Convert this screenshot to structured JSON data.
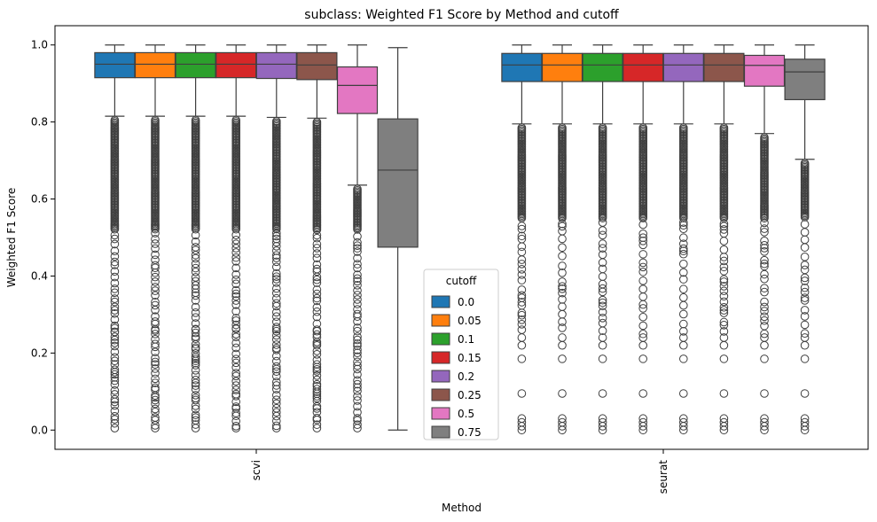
{
  "chart_data": {
    "type": "box",
    "title": "subclass: Weighted F1 Score by Method and cutoff",
    "xlabel": "Method",
    "ylabel": "Weighted F1 Score",
    "ylim": [
      -0.05,
      1.05
    ],
    "yticks": [
      "0.0",
      "0.2",
      "0.4",
      "0.6",
      "0.8",
      "1.0"
    ],
    "ytick_values": [
      0.0,
      0.2,
      0.4,
      0.6,
      0.8,
      1.0
    ],
    "grid": false,
    "categories": [
      "scvi",
      "seurat"
    ],
    "legend": {
      "title": "cutoff",
      "placement": "lower center",
      "entries": [
        "0.0",
        "0.05",
        "0.1",
        "0.15",
        "0.2",
        "0.25",
        "0.5",
        "0.75"
      ]
    },
    "series": [
      {
        "name": "0.0",
        "color": "#1f77b4",
        "boxes": [
          {
            "category": "scvi",
            "whisker_low": 0.815,
            "q1": 0.915,
            "median": 0.95,
            "q3": 0.98,
            "whisker_high": 1.0
          },
          {
            "category": "seurat",
            "whisker_low": 0.795,
            "q1": 0.905,
            "median": 0.948,
            "q3": 0.978,
            "whisker_high": 1.0
          }
        ]
      },
      {
        "name": "0.05",
        "color": "#ff7f0e",
        "boxes": [
          {
            "category": "scvi",
            "whisker_low": 0.815,
            "q1": 0.915,
            "median": 0.95,
            "q3": 0.98,
            "whisker_high": 1.0
          },
          {
            "category": "seurat",
            "whisker_low": 0.795,
            "q1": 0.905,
            "median": 0.948,
            "q3": 0.978,
            "whisker_high": 1.0
          }
        ]
      },
      {
        "name": "0.1",
        "color": "#2ca02c",
        "boxes": [
          {
            "category": "scvi",
            "whisker_low": 0.815,
            "q1": 0.915,
            "median": 0.95,
            "q3": 0.98,
            "whisker_high": 1.0
          },
          {
            "category": "seurat",
            "whisker_low": 0.795,
            "q1": 0.905,
            "median": 0.948,
            "q3": 0.978,
            "whisker_high": 1.0
          }
        ]
      },
      {
        "name": "0.15",
        "color": "#d62728",
        "boxes": [
          {
            "category": "scvi",
            "whisker_low": 0.815,
            "q1": 0.915,
            "median": 0.95,
            "q3": 0.98,
            "whisker_high": 1.0
          },
          {
            "category": "seurat",
            "whisker_low": 0.795,
            "q1": 0.905,
            "median": 0.948,
            "q3": 0.978,
            "whisker_high": 1.0
          }
        ]
      },
      {
        "name": "0.2",
        "color": "#9467bd",
        "boxes": [
          {
            "category": "scvi",
            "whisker_low": 0.812,
            "q1": 0.913,
            "median": 0.95,
            "q3": 0.98,
            "whisker_high": 1.0
          },
          {
            "category": "seurat",
            "whisker_low": 0.795,
            "q1": 0.905,
            "median": 0.948,
            "q3": 0.978,
            "whisker_high": 1.0
          }
        ]
      },
      {
        "name": "0.25",
        "color": "#8c564b",
        "boxes": [
          {
            "category": "scvi",
            "whisker_low": 0.81,
            "q1": 0.91,
            "median": 0.948,
            "q3": 0.98,
            "whisker_high": 1.0
          },
          {
            "category": "seurat",
            "whisker_low": 0.795,
            "q1": 0.905,
            "median": 0.948,
            "q3": 0.978,
            "whisker_high": 1.0
          }
        ]
      },
      {
        "name": "0.5",
        "color": "#e377c2",
        "boxes": [
          {
            "category": "scvi",
            "whisker_low": 0.636,
            "q1": 0.822,
            "median": 0.895,
            "q3": 0.943,
            "whisker_high": 1.0
          },
          {
            "category": "seurat",
            "whisker_low": 0.77,
            "q1": 0.893,
            "median": 0.947,
            "q3": 0.973,
            "whisker_high": 1.0
          }
        ]
      },
      {
        "name": "0.75",
        "color": "#7f7f7f",
        "boxes": [
          {
            "category": "scvi",
            "whisker_low": 0.0,
            "q1": 0.475,
            "median": 0.675,
            "q3": 0.808,
            "whisker_high": 0.993
          },
          {
            "category": "seurat",
            "whisker_low": 0.703,
            "q1": 0.858,
            "median": 0.93,
            "q3": 0.963,
            "whisker_high": 1.0
          }
        ]
      }
    ]
  }
}
